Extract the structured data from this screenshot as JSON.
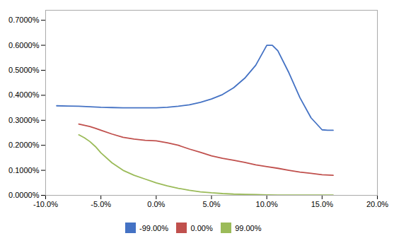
{
  "chart_data": {
    "type": "line",
    "xlim": [
      -0.1,
      0.2
    ],
    "xticks": [
      {
        "value": -0.1,
        "label": "-10.0%"
      },
      {
        "value": -0.05,
        "label": "-5.0%"
      },
      {
        "value": 0.0,
        "label": "0.0%"
      },
      {
        "value": 0.05,
        "label": "5.0%"
      },
      {
        "value": 0.1,
        "label": "10.0%"
      },
      {
        "value": 0.15,
        "label": "15.0%"
      },
      {
        "value": 0.2,
        "label": "20.0%"
      }
    ],
    "ylim": [
      0.0,
      0.0074
    ],
    "yticks": [
      {
        "value": 0.0,
        "label": "0.0000%"
      },
      {
        "value": 0.001,
        "label": "0.1000%"
      },
      {
        "value": 0.002,
        "label": "0.2000%"
      },
      {
        "value": 0.003,
        "label": "0.3000%"
      },
      {
        "value": 0.004,
        "label": "0.4000%"
      },
      {
        "value": 0.005,
        "label": "0.5000%"
      },
      {
        "value": 0.006,
        "label": "0.6000%"
      },
      {
        "value": 0.007,
        "label": "0.7000%"
      }
    ],
    "grid": false,
    "legend": "bottom",
    "series": [
      {
        "name": "-99.00%",
        "color": "#4472C4",
        "x": [
          -0.09,
          -0.08,
          -0.07,
          -0.06,
          -0.05,
          -0.04,
          -0.03,
          -0.02,
          -0.01,
          0.0,
          0.01,
          0.02,
          0.03,
          0.04,
          0.05,
          0.06,
          0.07,
          0.08,
          0.09,
          0.1,
          0.105,
          0.11,
          0.12,
          0.13,
          0.14,
          0.15,
          0.155,
          0.16
        ],
        "values": [
          0.00358,
          0.00357,
          0.00356,
          0.00354,
          0.00352,
          0.00351,
          0.0035,
          0.0035,
          0.0035,
          0.0035,
          0.00352,
          0.00356,
          0.00362,
          0.00372,
          0.00385,
          0.00403,
          0.0043,
          0.00468,
          0.0052,
          0.006,
          0.006,
          0.00578,
          0.0049,
          0.0039,
          0.0031,
          0.00262,
          0.0026,
          0.0026
        ]
      },
      {
        "name": "0.00%",
        "color": "#C0504D",
        "x": [
          -0.07,
          -0.065,
          -0.06,
          -0.055,
          -0.05,
          -0.04,
          -0.03,
          -0.02,
          -0.01,
          0.0,
          0.01,
          0.02,
          0.03,
          0.04,
          0.05,
          0.06,
          0.07,
          0.08,
          0.09,
          0.1,
          0.11,
          0.12,
          0.13,
          0.14,
          0.15,
          0.16
        ],
        "values": [
          0.00285,
          0.0028,
          0.00275,
          0.00268,
          0.0026,
          0.00245,
          0.00232,
          0.00225,
          0.0022,
          0.00218,
          0.0021,
          0.002,
          0.00185,
          0.00172,
          0.00158,
          0.00148,
          0.0014,
          0.00132,
          0.00122,
          0.00115,
          0.00108,
          0.001,
          0.00093,
          0.00088,
          0.00082,
          0.0008
        ]
      },
      {
        "name": "99.00%",
        "color": "#9BBB59",
        "x": [
          -0.07,
          -0.065,
          -0.06,
          -0.055,
          -0.05,
          -0.04,
          -0.03,
          -0.02,
          -0.01,
          0.0,
          0.01,
          0.02,
          0.03,
          0.04,
          0.05,
          0.06,
          0.07,
          0.08,
          0.09,
          0.1,
          0.11,
          0.12,
          0.13,
          0.14,
          0.15,
          0.16
        ],
        "values": [
          0.00242,
          0.0023,
          0.00215,
          0.00195,
          0.0017,
          0.0013,
          0.001,
          0.0008,
          0.00065,
          0.0005,
          0.00038,
          0.00028,
          0.0002,
          0.00014,
          0.0001,
          7e-05,
          5e-05,
          4e-05,
          3e-05,
          2e-05,
          1e-05,
          1e-05,
          1e-05,
          1e-05,
          1e-05,
          1e-05
        ]
      }
    ]
  }
}
